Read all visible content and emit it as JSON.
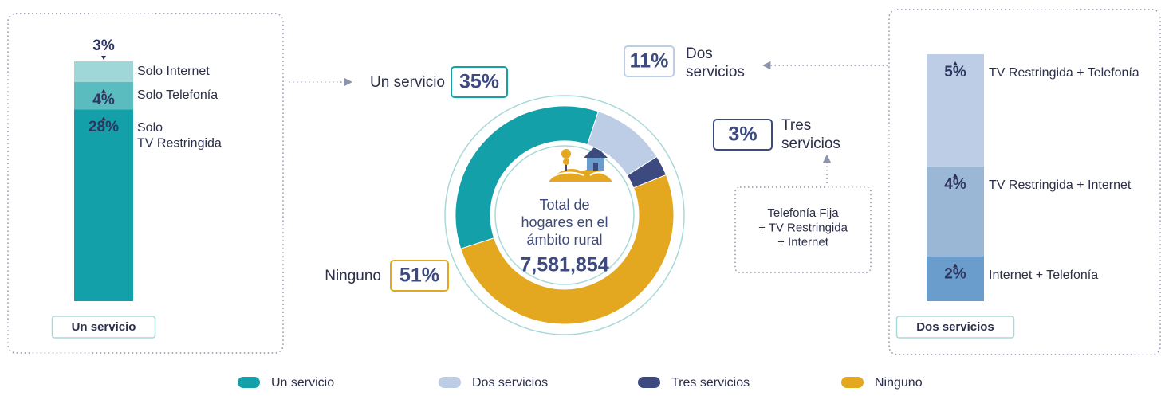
{
  "chart_data": [
    {
      "type": "pie",
      "center_title": "Total de\nhogares en el\námbito rural",
      "center_value": "7,581,854",
      "categories": [
        "Un servicio",
        "Dos servicios",
        "Tres servicios",
        "Ninguno"
      ],
      "values": [
        35,
        11,
        3,
        51
      ],
      "value_labels": [
        "35%",
        "11%",
        "3%",
        "51%"
      ],
      "colors": [
        "#14a0a8",
        "#bccde5",
        "#3d4a80",
        "#e3a820"
      ],
      "annotation": "Telefonía Fija\n+ TV Restringida\n+ Internet"
    },
    {
      "type": "bar",
      "stacked": true,
      "title": "Un servicio",
      "ylim": [
        0,
        35
      ],
      "series": [
        {
          "name": "Solo\nTV Restringida",
          "color": "#14a0a8",
          "values": [
            28
          ],
          "value_labels": [
            "28%"
          ]
        },
        {
          "name": "Solo Telefonía",
          "color": "#5bbcbf",
          "values": [
            4
          ],
          "value_labels": [
            "4%"
          ]
        },
        {
          "name": "Solo Internet",
          "color": "#9fd6d8",
          "values": [
            3
          ],
          "value_labels": [
            "3%"
          ]
        }
      ]
    },
    {
      "type": "bar",
      "stacked": true,
      "title": "Dos servicios",
      "ylim": [
        0,
        11
      ],
      "series": [
        {
          "name": "Internet + Telefonía",
          "color": "#6a9ccc",
          "values": [
            2
          ],
          "value_labels": [
            "2%"
          ]
        },
        {
          "name": "TV Restringida + Internet",
          "color": "#9ab7d6",
          "values": [
            4
          ],
          "value_labels": [
            "4%"
          ]
        },
        {
          "name": "TV Restringida + Telefonía",
          "color": "#bccde5",
          "values": [
            5
          ],
          "value_labels": [
            "5%"
          ]
        }
      ]
    }
  ]
}
